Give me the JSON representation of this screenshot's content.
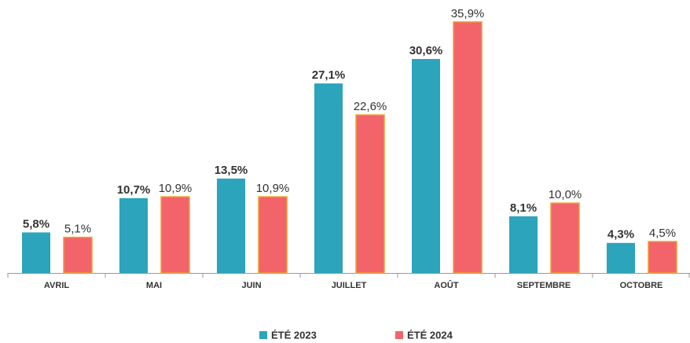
{
  "chart_data": {
    "type": "bar",
    "categories": [
      "AVRIL",
      "MAI",
      "JUIN",
      "JUILLET",
      "AOÛT",
      "SEPTEMBRE",
      "OCTOBRE"
    ],
    "series": [
      {
        "name": "ÉTÉ 2023",
        "color": "#2ba4bc",
        "values": [
          5.8,
          10.7,
          13.5,
          27.1,
          30.6,
          8.1,
          4.3
        ],
        "value_labels": [
          "5,8%",
          "10,7%",
          "13,5%",
          "27,1%",
          "30,6%",
          "8,1%",
          "4,3%"
        ]
      },
      {
        "name": "ÉTÉ 2024",
        "color": "#f2646a",
        "values": [
          5.1,
          10.9,
          10.9,
          22.6,
          35.9,
          10.0,
          4.5
        ],
        "value_labels": [
          "5,1%",
          "10,9%",
          "10,9%",
          "22,6%",
          "35,9%",
          "10,0%",
          "4,5%"
        ]
      }
    ],
    "legend": "bottom"
  }
}
